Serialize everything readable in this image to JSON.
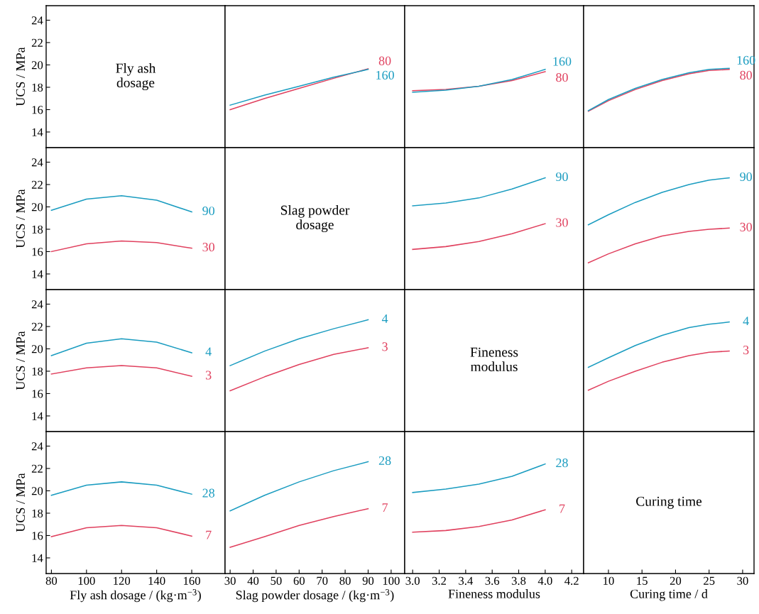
{
  "chart_data": [
    {
      "type": "line",
      "annotations": [
        "Fly ash\ndosage"
      ],
      "xlim": [
        77,
        179
      ],
      "ylim": [
        12.6,
        25.3
      ],
      "yticks": [
        14,
        16,
        18,
        20,
        22,
        24
      ],
      "tick_labels": "y",
      "ylabel": "UCS / MPa"
    },
    {
      "type": "line",
      "x": [
        30,
        45,
        60,
        75,
        90
      ],
      "series": [
        {
          "name": "80",
          "color": "#e0405e",
          "values": [
            16.0,
            17.0,
            17.9,
            18.8,
            19.65
          ]
        },
        {
          "name": "160",
          "color": "#1a9cc0",
          "values": [
            16.4,
            17.3,
            18.1,
            18.9,
            19.6
          ]
        }
      ],
      "xlim": [
        27.8,
        105.9
      ],
      "ylim": [
        12.6,
        25.3
      ],
      "tick_labels": false
    },
    {
      "type": "line",
      "x": [
        3.0,
        3.25,
        3.5,
        3.75,
        4.0
      ],
      "series": [
        {
          "name": "80",
          "color": "#e0405e",
          "values": [
            17.7,
            17.8,
            18.1,
            18.6,
            19.4
          ]
        },
        {
          "name": "160",
          "color": "#1a9cc0",
          "values": [
            17.55,
            17.75,
            18.1,
            18.7,
            19.6
          ]
        }
      ],
      "xlim": [
        2.94,
        4.29
      ],
      "ylim": [
        12.6,
        25.3
      ],
      "tick_labels": false
    },
    {
      "type": "line",
      "x": [
        7,
        10,
        14,
        18,
        22,
        25,
        28
      ],
      "series": [
        {
          "name": "80",
          "color": "#e0405e",
          "values": [
            15.85,
            16.8,
            17.8,
            18.6,
            19.2,
            19.5,
            19.6
          ]
        },
        {
          "name": "160",
          "color": "#1a9cc0",
          "values": [
            15.9,
            16.9,
            17.9,
            18.7,
            19.3,
            19.6,
            19.7
          ]
        }
      ],
      "xlim": [
        6.3,
        31.7
      ],
      "ylim": [
        12.6,
        25.3
      ],
      "tick_labels": false
    },
    {
      "type": "line",
      "x": [
        80,
        100,
        120,
        140,
        160
      ],
      "series": [
        {
          "name": "30",
          "color": "#e0405e",
          "values": [
            16.0,
            16.7,
            16.95,
            16.8,
            16.3
          ]
        },
        {
          "name": "90",
          "color": "#1a9cc0",
          "values": [
            19.7,
            20.7,
            21.0,
            20.6,
            19.55
          ]
        }
      ],
      "xlim": [
        77,
        179
      ],
      "ylim": [
        12.6,
        25.3
      ],
      "yticks": [
        14,
        16,
        18,
        20,
        22,
        24
      ],
      "tick_labels": "y",
      "ylabel": "UCS / MPa"
    },
    {
      "type": "line",
      "annotations": [
        "Slag powder\ndosage"
      ],
      "xlim": [
        27.8,
        105.9
      ],
      "ylim": [
        12.6,
        25.3
      ],
      "tick_labels": false
    },
    {
      "type": "line",
      "x": [
        3.0,
        3.25,
        3.5,
        3.75,
        4.0
      ],
      "series": [
        {
          "name": "30",
          "color": "#e0405e",
          "values": [
            16.2,
            16.45,
            16.9,
            17.6,
            18.5
          ]
        },
        {
          "name": "90",
          "color": "#1a9cc0",
          "values": [
            20.1,
            20.35,
            20.8,
            21.6,
            22.6
          ]
        }
      ],
      "xlim": [
        2.94,
        4.29
      ],
      "ylim": [
        12.6,
        25.3
      ],
      "tick_labels": false
    },
    {
      "type": "line",
      "x": [
        7,
        10,
        14,
        18,
        22,
        25,
        28
      ],
      "series": [
        {
          "name": "30",
          "color": "#e0405e",
          "values": [
            15.0,
            15.8,
            16.7,
            17.4,
            17.8,
            18.0,
            18.1
          ]
        },
        {
          "name": "90",
          "color": "#1a9cc0",
          "values": [
            18.4,
            19.3,
            20.4,
            21.3,
            22.0,
            22.4,
            22.6
          ]
        }
      ],
      "xlim": [
        6.3,
        31.7
      ],
      "ylim": [
        12.6,
        25.3
      ],
      "tick_labels": false
    },
    {
      "type": "line",
      "x": [
        80,
        100,
        120,
        140,
        160
      ],
      "series": [
        {
          "name": "3",
          "color": "#e0405e",
          "values": [
            17.75,
            18.3,
            18.5,
            18.3,
            17.55
          ]
        },
        {
          "name": "4",
          "color": "#1a9cc0",
          "values": [
            19.4,
            20.5,
            20.9,
            20.6,
            19.65
          ]
        }
      ],
      "xlim": [
        77,
        179
      ],
      "ylim": [
        12.6,
        25.3
      ],
      "yticks": [
        14,
        16,
        18,
        20,
        22,
        24
      ],
      "tick_labels": "y",
      "ylabel": "UCS / MPa"
    },
    {
      "type": "line",
      "x": [
        30,
        45,
        60,
        75,
        90
      ],
      "series": [
        {
          "name": "3",
          "color": "#e0405e",
          "values": [
            16.25,
            17.5,
            18.6,
            19.5,
            20.1
          ]
        },
        {
          "name": "4",
          "color": "#1a9cc0",
          "values": [
            18.5,
            19.8,
            20.9,
            21.8,
            22.6
          ]
        }
      ],
      "xlim": [
        27.8,
        105.9
      ],
      "ylim": [
        12.6,
        25.3
      ],
      "tick_labels": false
    },
    {
      "type": "line",
      "annotations": [
        "Fineness\nmodulus"
      ],
      "xlim": [
        2.94,
        4.29
      ],
      "ylim": [
        12.6,
        25.3
      ],
      "tick_labels": false
    },
    {
      "type": "line",
      "x": [
        7,
        10,
        14,
        18,
        22,
        25,
        28
      ],
      "series": [
        {
          "name": "3",
          "color": "#e0405e",
          "values": [
            16.3,
            17.1,
            18.0,
            18.8,
            19.4,
            19.7,
            19.8
          ]
        },
        {
          "name": "4",
          "color": "#1a9cc0",
          "values": [
            18.35,
            19.2,
            20.3,
            21.2,
            21.9,
            22.2,
            22.4
          ]
        }
      ],
      "xlim": [
        6.3,
        31.7
      ],
      "ylim": [
        12.6,
        25.3
      ],
      "tick_labels": false
    },
    {
      "type": "line",
      "x": [
        80,
        100,
        120,
        140,
        160
      ],
      "series": [
        {
          "name": "7",
          "color": "#e0405e",
          "values": [
            15.9,
            16.7,
            16.9,
            16.7,
            15.95
          ]
        },
        {
          "name": "28",
          "color": "#1a9cc0",
          "values": [
            19.6,
            20.5,
            20.8,
            20.5,
            19.7
          ]
        }
      ],
      "xlim": [
        77,
        179
      ],
      "ylim": [
        12.6,
        25.3
      ],
      "xticks": [
        80,
        100,
        120,
        140,
        160
      ],
      "yticks": [
        14,
        16,
        18,
        20,
        22,
        24
      ],
      "xlabel": "Fly ash dosage / (kg·m$^{−3}$)",
      "ylabel": "UCS / MPa"
    },
    {
      "type": "line",
      "x": [
        30,
        45,
        60,
        75,
        90
      ],
      "series": [
        {
          "name": "7",
          "color": "#e0405e",
          "values": [
            14.95,
            15.9,
            16.9,
            17.7,
            18.4
          ]
        },
        {
          "name": "28",
          "color": "#1a9cc0",
          "values": [
            18.2,
            19.6,
            20.8,
            21.8,
            22.6
          ]
        }
      ],
      "xlim": [
        27.8,
        105.9
      ],
      "ylim": [
        12.6,
        25.3
      ],
      "xticks": [
        30,
        40,
        50,
        60,
        70,
        80,
        90,
        100
      ],
      "tick_labels": "x",
      "xlabel": "Slag powder dosage / (kg·m$^{−3}$)"
    },
    {
      "type": "line",
      "x": [
        3.0,
        3.25,
        3.5,
        3.75,
        4.0
      ],
      "series": [
        {
          "name": "7",
          "color": "#e0405e",
          "values": [
            16.3,
            16.45,
            16.8,
            17.4,
            18.3
          ]
        },
        {
          "name": "28",
          "color": "#1a9cc0",
          "values": [
            19.85,
            20.15,
            20.6,
            21.3,
            22.4
          ]
        }
      ],
      "xlim": [
        2.94,
        4.29
      ],
      "ylim": [
        12.6,
        25.3
      ],
      "xticks": [
        {
          "value": 3.0,
          "label": "3.0"
        },
        3.2,
        3.4,
        3.6,
        3.8,
        {
          "value": 4.0,
          "label": "4.0"
        },
        4.2
      ],
      "tick_labels": "x",
      "xlabel": "Fineness modulus"
    },
    {
      "type": "line",
      "annotations": [
        "Curing time"
      ],
      "xlim": [
        6.3,
        31.7
      ],
      "ylim": [
        12.6,
        25.3
      ],
      "xticks": [
        10,
        15,
        20,
        25,
        30
      ],
      "tick_labels": "x",
      "xlabel": "Curing time / d"
    }
  ]
}
